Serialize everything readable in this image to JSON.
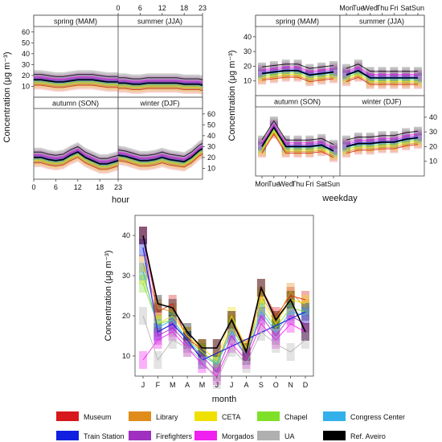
{
  "ylabel": "Concentration (μg m⁻³)",
  "hour_panel": {
    "xlabel": "hour",
    "xticks": [
      "0",
      "6",
      "12",
      "18",
      "23"
    ],
    "yticks": [
      "10",
      "20",
      "30",
      "40",
      "50",
      "60"
    ],
    "strips": [
      "spring (MAM)",
      "summer (JJA)",
      "autumn (SON)",
      "winter (DJF)"
    ]
  },
  "weekday_panel": {
    "xlabel": "weekday",
    "xticks": [
      "Mon",
      "Tue",
      "Wed",
      "Thu",
      "Fri",
      "Sat",
      "Sun"
    ],
    "yticks": [
      "10",
      "20",
      "30",
      "40"
    ],
    "strips": [
      "spring (MAM)",
      "summer (JJA)",
      "autumn (SON)",
      "winter (DJF)"
    ]
  },
  "month_panel": {
    "xlabel": "month",
    "xticks": [
      "J",
      "F",
      "M",
      "A",
      "M",
      "J",
      "J",
      "A",
      "S",
      "O",
      "N",
      "D"
    ],
    "yticks": [
      "10",
      "20",
      "30",
      "40"
    ]
  },
  "legend": [
    {
      "name": "Museum",
      "color": "#d7191c"
    },
    {
      "name": "Library",
      "color": "#e08c1a"
    },
    {
      "name": "CETA",
      "color": "#f0e000"
    },
    {
      "name": "Chapel",
      "color": "#7fe02a"
    },
    {
      "name": "Congress Center",
      "color": "#33b0ea"
    },
    {
      "name": "Train Station",
      "color": "#1020e0"
    },
    {
      "name": "Firefighters",
      "color": "#a030c0"
    },
    {
      "name": "Morgados",
      "color": "#f020f0"
    },
    {
      "name": "UA",
      "color": "#b0b0b0"
    },
    {
      "name": "Ref. Aveiro",
      "color": "#000000"
    }
  ],
  "chart_data": [
    {
      "type": "line",
      "panel": "hour",
      "x": [
        0,
        2,
        4,
        6,
        8,
        10,
        12,
        14,
        16,
        18,
        20,
        22,
        23
      ],
      "ylim": [
        0,
        65
      ],
      "xlim": [
        0,
        23
      ],
      "series_black": {
        "spring (MAM)": [
          16,
          16,
          15,
          14,
          14,
          15,
          16,
          16,
          16,
          15,
          14,
          14,
          14
        ],
        "summer (JJA)": [
          13,
          13,
          12,
          12,
          13,
          13,
          13,
          13,
          13,
          12,
          12,
          12,
          11
        ],
        "autumn (SON)": [
          20,
          20,
          18,
          17,
          18,
          22,
          25,
          20,
          17,
          14,
          14,
          16,
          17
        ],
        "winter (DJF)": [
          22,
          21,
          19,
          17,
          17,
          18,
          20,
          18,
          17,
          16,
          20,
          26,
          28
        ]
      }
    },
    {
      "type": "line",
      "panel": "weekday",
      "categories": [
        "Mon",
        "Tue",
        "Wed",
        "Thu",
        "Fri",
        "Sat",
        "Sun"
      ],
      "ylim": [
        0,
        47
      ],
      "series_black": {
        "spring (MAM)": [
          15,
          16,
          17,
          17,
          14,
          15,
          16
        ],
        "summer (JJA)": [
          14,
          17,
          12,
          12,
          12,
          12,
          12
        ],
        "autumn (SON)": [
          20,
          33,
          20,
          20,
          20,
          21,
          17
        ],
        "winter (DJF)": [
          20,
          22,
          22,
          23,
          23,
          25,
          26
        ]
      }
    },
    {
      "type": "line",
      "panel": "month",
      "categories": [
        "J",
        "F",
        "M",
        "A",
        "M",
        "J",
        "J",
        "A",
        "S",
        "O",
        "N",
        "D"
      ],
      "ylim": [
        5,
        45
      ],
      "series": [
        {
          "name": "Museum",
          "values": [
            40,
            21,
            23,
            14,
            12,
            12,
            19,
            12,
            27,
            20,
            25,
            24
          ]
        },
        {
          "name": "Library",
          "values": [
            33,
            22,
            21,
            15,
            11,
            8,
            18,
            10,
            25,
            19,
            26,
            22
          ]
        },
        {
          "name": "CETA",
          "values": [
            30,
            18,
            20,
            15,
            12,
            9,
            20,
            12,
            24,
            18,
            24,
            23
          ]
        },
        {
          "name": "Chapel",
          "values": [
            28,
            18,
            19,
            14,
            11,
            8,
            17,
            11,
            22,
            17,
            22,
            21
          ]
        },
        {
          "name": "Congress Center",
          "values": [
            31,
            17,
            19,
            14,
            10,
            8,
            16,
            10,
            21,
            16,
            21,
            20
          ]
        },
        {
          "name": "Train Station",
          "values": [
            37,
            16,
            18,
            14,
            9,
            null,
            null,
            null,
            null,
            null,
            null,
            21
          ]
        },
        {
          "name": "Firefighters",
          "values": [
            40,
            15,
            17,
            13,
            10,
            6,
            15,
            10,
            20,
            15,
            20,
            18
          ]
        },
        {
          "name": "Morgados",
          "values": [
            9,
            14,
            16,
            12,
            8,
            5,
            13,
            9,
            18,
            14,
            18,
            16
          ]
        },
        {
          "name": "UA",
          "values": [
            20,
            9,
            14,
            12,
            9,
            4,
            12,
            8,
            16,
            13,
            11,
            14
          ]
        },
        {
          "name": "Ref. Aveiro",
          "values": [
            40,
            23,
            22,
            16,
            12,
            12,
            19,
            11,
            27,
            19,
            24,
            16
          ]
        }
      ]
    }
  ]
}
